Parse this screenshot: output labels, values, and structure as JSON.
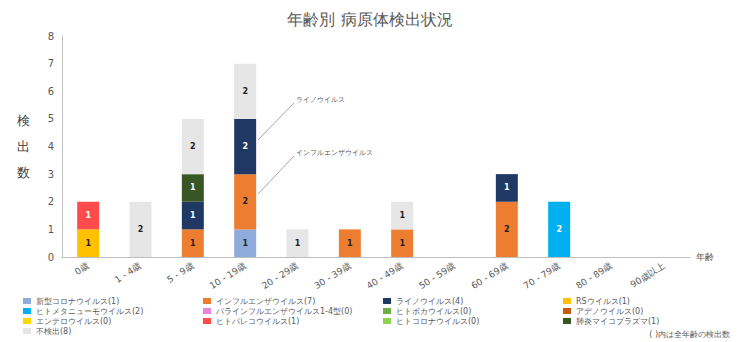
{
  "chart_data": {
    "type": "bar",
    "title": "年齢別 病原体検出状況",
    "x_label": "年齢",
    "y_label": "検出数",
    "categories": [
      "0歳",
      "1 - 4歳",
      "5 - 9歳",
      "10 - 19歳",
      "20 - 29歳",
      "30 - 39歳",
      "40 - 49歳",
      "50 - 59歳",
      "60 - 69歳",
      "70 - 79歳",
      "80 - 89歳",
      "90歳以上"
    ],
    "series": [
      {
        "name": "新型コロナウイルス(1)",
        "color": "#8faadc",
        "values": [
          null,
          null,
          null,
          1,
          null,
          null,
          null,
          null,
          null,
          null,
          null,
          null
        ]
      },
      {
        "name": "インフルエンザウイルス(7)",
        "color": "#ed7d31",
        "values": [
          null,
          null,
          1,
          2,
          null,
          1,
          1,
          null,
          2,
          null,
          null,
          null
        ]
      },
      {
        "name": "ライノウイルス(4)",
        "color": "#203864",
        "values": [
          null,
          null,
          1,
          2,
          null,
          null,
          null,
          null,
          1,
          null,
          null,
          null
        ]
      },
      {
        "name": "RSウイルス(1)",
        "color": "#ffc000",
        "values": [
          1,
          null,
          null,
          null,
          null,
          null,
          null,
          null,
          null,
          null,
          null,
          null
        ]
      },
      {
        "name": "ヒトメタニューモウイルス(2)",
        "color": "#00b0f0",
        "values": [
          null,
          null,
          null,
          null,
          null,
          null,
          null,
          null,
          null,
          2,
          null,
          null
        ]
      },
      {
        "name": "パラインフルエンザウイルス1-4型(0)",
        "color": "#e685d9",
        "values": [
          null,
          null,
          null,
          null,
          null,
          null,
          null,
          null,
          null,
          null,
          null,
          null
        ]
      },
      {
        "name": "ヒトボカウイルス(0)",
        "color": "#70ad47",
        "values": [
          null,
          null,
          null,
          null,
          null,
          null,
          null,
          null,
          null,
          null,
          null,
          null
        ]
      },
      {
        "name": "アデノウイルス(0)",
        "color": "#c55a11",
        "values": [
          null,
          null,
          null,
          null,
          null,
          null,
          null,
          null,
          null,
          null,
          null,
          null
        ]
      },
      {
        "name": "エンテロウイルス(0)",
        "color": "#ffd700",
        "values": [
          null,
          null,
          null,
          null,
          null,
          null,
          null,
          null,
          null,
          null,
          null,
          null
        ]
      },
      {
        "name": "ヒトパレコウイルス(1)",
        "color": "#ff4b4b",
        "values": [
          1,
          null,
          null,
          null,
          null,
          null,
          null,
          null,
          null,
          null,
          null,
          null
        ]
      },
      {
        "name": "ヒトコロナウイルス(0)",
        "color": "#92d050",
        "values": [
          null,
          null,
          null,
          null,
          null,
          null,
          null,
          null,
          null,
          null,
          null,
          null
        ]
      },
      {
        "name": "肺炎マイコプラズマ(1)",
        "color": "#375623",
        "values": [
          null,
          null,
          1,
          null,
          null,
          null,
          null,
          null,
          null,
          null,
          null,
          null
        ]
      },
      {
        "name": "不検出(8)",
        "color": "#e7e6e6",
        "values": [
          null,
          2,
          2,
          2,
          1,
          null,
          1,
          null,
          null,
          null,
          null,
          null
        ]
      }
    ],
    "ylim": [
      0,
      8
    ],
    "yticks": [
      0,
      1,
      2,
      3,
      4,
      5,
      6,
      7,
      8
    ],
    "stacked": true,
    "data_labels": true,
    "grid": false,
    "legend": "bottom",
    "annotations": [
      "ライノウイルス",
      "インフルエンザウイルス"
    ],
    "note": "( )内は全年齢の検出数"
  }
}
